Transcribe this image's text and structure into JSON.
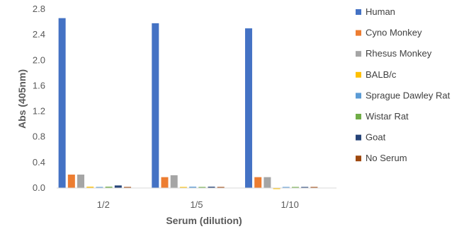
{
  "chart_data": {
    "type": "bar",
    "xlabel": "Serum (dilution)",
    "ylabel": "Abs (405nm)",
    "categories": [
      "1/2",
      "1/5",
      "1/10"
    ],
    "ylim": [
      0,
      2.8
    ],
    "yticks": [
      "0.0",
      "0.4",
      "0.8",
      "1.2",
      "1.6",
      "2.0",
      "2.4",
      "2.8"
    ],
    "grid": false,
    "legend_position": "right",
    "series": [
      {
        "name": "Human",
        "color": "#4472C4",
        "values": [
          2.66,
          2.58,
          2.5
        ]
      },
      {
        "name": "Cyno Monkey",
        "color": "#ED7D31",
        "values": [
          0.21,
          0.17,
          0.17
        ]
      },
      {
        "name": "Rhesus Monkey",
        "color": "#A5A5A5",
        "values": [
          0.21,
          0.2,
          0.17
        ]
      },
      {
        "name": "BALB/c",
        "color": "#FFC000",
        "values": [
          0.02,
          0.0,
          -0.01
        ]
      },
      {
        "name": "Sprague Dawley Rat",
        "color": "#5B9BD5",
        "values": [
          0.01,
          0.02,
          0.0
        ]
      },
      {
        "name": "Wistar Rat",
        "color": "#70AD47",
        "values": [
          0.02,
          0.01,
          0.0
        ]
      },
      {
        "name": "Goat",
        "color": "#264478",
        "values": [
          0.04,
          0.02,
          0.01
        ]
      },
      {
        "name": "No Serum",
        "color": "#9E480E",
        "values": [
          0.0,
          0.0,
          0.01
        ]
      }
    ]
  }
}
